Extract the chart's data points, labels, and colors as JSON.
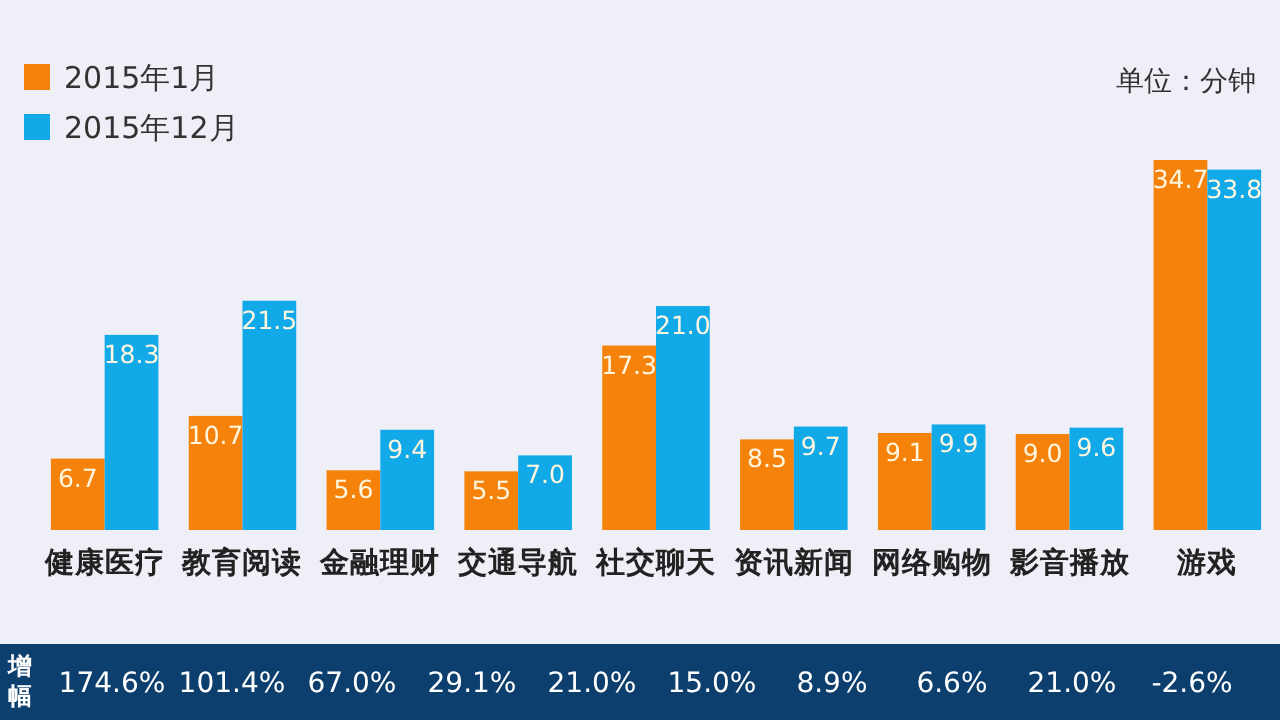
{
  "chart_data": {
    "type": "bar",
    "subtitle": "单位：分钟",
    "categories": [
      "健康医疗",
      "教育阅读",
      "金融理财",
      "交通导航",
      "社交聊天",
      "资讯新闻",
      "网络购物",
      "影音播放",
      "游戏"
    ],
    "series": [
      {
        "name": "2015年1月",
        "color": "#f5820a",
        "values": [
          6.7,
          10.7,
          5.6,
          5.5,
          17.3,
          8.5,
          9.1,
          9.0,
          34.7
        ],
        "value_labels": [
          "6.7",
          "10.7",
          "5.6",
          "5.5",
          "17.3",
          "8.5",
          "9.1",
          "9.0",
          "34.7"
        ]
      },
      {
        "name": "2015年12月",
        "color": "#12a9e8",
        "values": [
          18.3,
          21.5,
          9.4,
          7.0,
          21.0,
          9.7,
          9.9,
          9.6,
          33.8
        ],
        "value_labels": [
          "18.3",
          "21.5",
          "9.4",
          "7.0",
          "21.0",
          "9.7",
          "9.9",
          "9.6",
          "33.8"
        ]
      }
    ],
    "data_labels": true,
    "legend": "top left",
    "grid": false,
    "annotations": [
      "增幅",
      "174.6%",
      "101.4%",
      "67.0%",
      "29.1%",
      "21.0%",
      "15.0%",
      "8.9%",
      "6.6%",
      "21.0%",
      "-2.6%"
    ]
  }
}
